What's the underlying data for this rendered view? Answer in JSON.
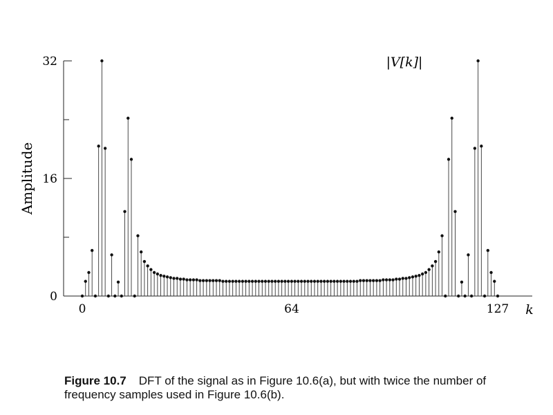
{
  "chart_data": {
    "type": "stem",
    "title": "|V[k]|",
    "xlabel": "k",
    "ylabel": "Amplitude",
    "xlim": [
      0,
      127
    ],
    "ylim": [
      0,
      32
    ],
    "xticks": [
      0,
      64,
      127
    ],
    "yticks": [
      0,
      16,
      32
    ],
    "grid": false,
    "x_start": 0,
    "values": [
      0,
      2.0,
      3.2,
      6.2,
      0,
      20.4,
      32,
      20.1,
      0,
      5.6,
      0,
      1.9,
      0,
      11.5,
      24.2,
      18.6,
      0,
      8.2,
      6.0,
      4.7,
      4.1,
      3.6,
      3.2,
      3.0,
      2.8,
      2.7,
      2.6,
      2.5,
      2.4,
      2.4,
      2.3,
      2.3,
      2.2,
      2.2,
      2.2,
      2.2,
      2.1,
      2.1,
      2.1,
      2.1,
      2.1,
      2.1,
      2.1,
      2.0,
      2.0,
      2.0,
      2.0,
      2.0,
      2.0,
      2.0,
      2.0,
      2.0,
      2.0,
      2.0,
      2.0,
      2.0,
      2.0,
      2.0,
      2.0,
      2.0,
      2.0,
      2.0,
      2.0,
      2.0,
      2.0,
      2.0,
      2.0,
      2.0,
      2.0,
      2.0,
      2.0,
      2.0,
      2.0,
      2.0,
      2.0,
      2.0,
      2.0,
      2.0,
      2.0,
      2.0,
      2.0,
      2.0,
      2.0,
      2.0,
      2.0,
      2.1,
      2.1,
      2.1,
      2.1,
      2.1,
      2.1,
      2.1,
      2.2,
      2.2,
      2.2,
      2.2,
      2.3,
      2.3,
      2.4,
      2.4,
      2.5,
      2.6,
      2.7,
      2.8,
      3.0,
      3.2,
      3.6,
      4.1,
      4.7,
      6.0,
      8.2,
      0,
      18.6,
      24.2,
      11.5,
      0,
      1.9,
      0,
      5.6,
      0,
      20.1,
      32,
      20.4,
      0,
      6.2,
      3.2,
      2.0,
      0
    ]
  },
  "caption": {
    "figure_number": "Figure 10.7",
    "text": "DFT of the signal as in Figure 10.6(a), but with twice the number of frequency samples used in Figure 10.6(b)."
  }
}
